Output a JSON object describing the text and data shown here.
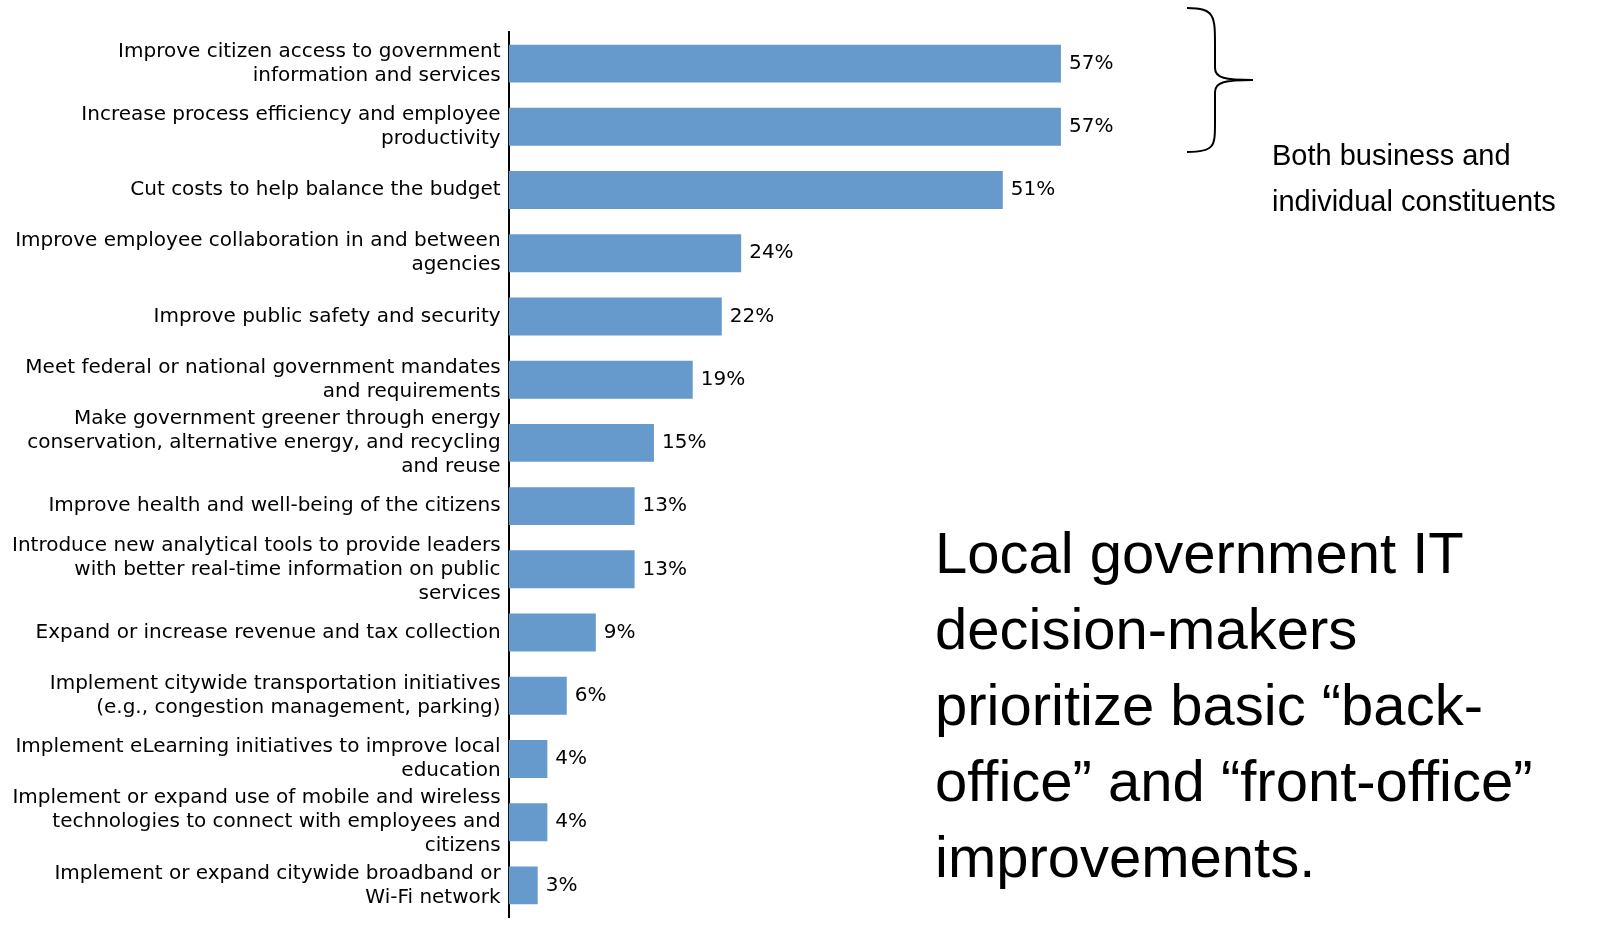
{
  "chart_data": {
    "type": "bar",
    "orientation": "horizontal",
    "title": "Local government IT decision-makers prioritize basic “back-office” and “front-office” improvements.",
    "categories": [
      "Improve citizen access to government information and services",
      "Increase process efficiency and employee productivity",
      "Cut costs to help balance the budget",
      "Improve employee collaboration in and between agencies",
      "Improve public safety and security",
      "Meet federal or national government mandates and requirements",
      "Make government greener through energy conservation, alternative energy, and recycling and reuse",
      "Improve health and well-being of the citizens",
      "Introduce new analytical tools to provide leaders with better real-time information on public services",
      "Expand or increase revenue and tax collection",
      "Implement citywide transportation initiatives (e.g., congestion management, parking)",
      "Implement eLearning initiatives to improve local education",
      "Implement or expand use of mobile and wireless technologies to connect with employees and citizens",
      "Implement or expand citywide broadband or Wi-Fi network"
    ],
    "values": [
      57,
      57,
      51,
      24,
      22,
      19,
      15,
      13,
      13,
      9,
      6,
      4,
      4,
      3
    ],
    "value_labels": [
      "57%",
      "57%",
      "51%",
      "24%",
      "22%",
      "19%",
      "15%",
      "13%",
      "13%",
      "9%",
      "6%",
      "4%",
      "4%",
      "3%"
    ],
    "color": "#6699cc",
    "tick_labels": "y",
    "legend": false,
    "annotations": [
      "Both business and individual constituents"
    ]
  }
}
